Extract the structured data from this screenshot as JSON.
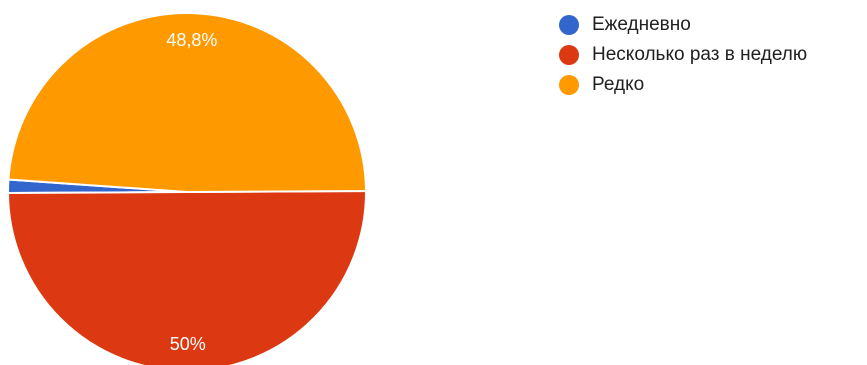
{
  "chart_data": {
    "type": "pie",
    "legend_position": "top-right",
    "series": [
      {
        "name": "Ежедневно",
        "value": 1.2,
        "color": "#3366cc"
      },
      {
        "name": "Несколько раз в неделю",
        "value": 50,
        "color": "#dc3912"
      },
      {
        "name": "Редко",
        "value": 48.8,
        "color": "#ff9900"
      }
    ],
    "data_labels": [
      "",
      "50%",
      "48,8%"
    ]
  }
}
